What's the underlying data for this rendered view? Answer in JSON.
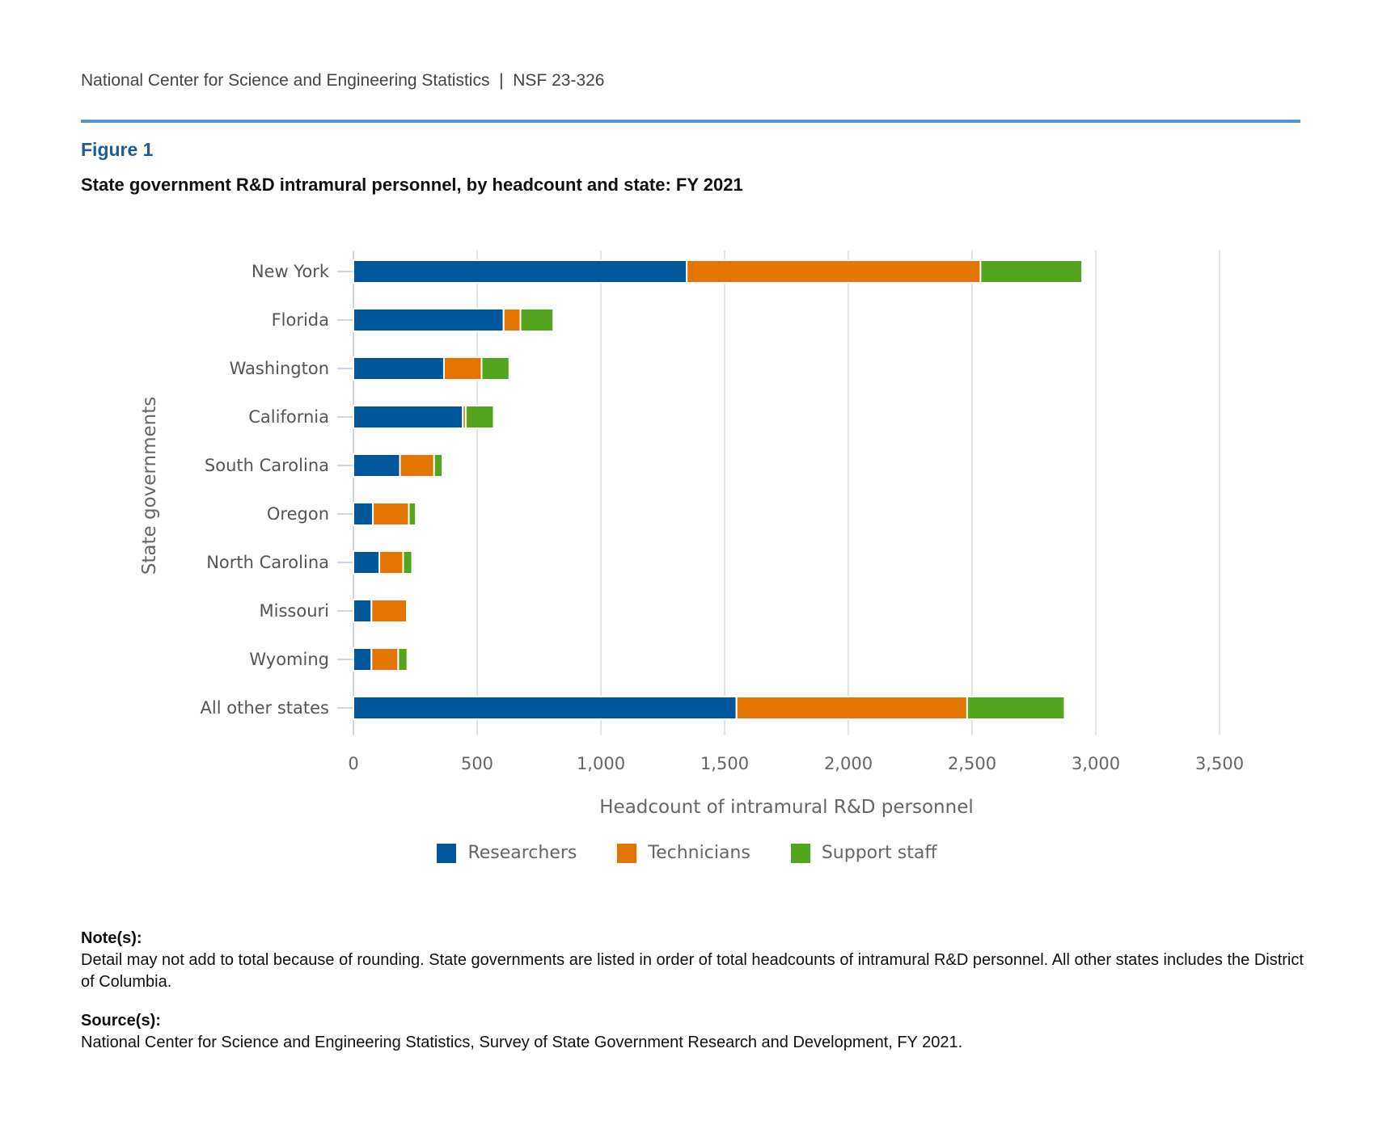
{
  "header": {
    "org": "National Center for Science and Engineering Statistics",
    "separator": "|",
    "report_id": "NSF 23-326"
  },
  "figure": {
    "label": "Figure 1",
    "title": "State government R&D intramural personnel, by headcount and state: FY 2021"
  },
  "colors": {
    "Researchers": "#00589a",
    "Technicians": "#e37400",
    "Support staff": "#52a51c"
  },
  "chart_data": {
    "type": "bar",
    "orientation": "horizontal",
    "stacked": true,
    "title": "State government R&D intramural personnel, by headcount and state: FY 2021",
    "xlabel": "Headcount of intramural R&D personnel",
    "ylabel": "State governments",
    "xlim": [
      0,
      3500
    ],
    "xticks": [
      0,
      500,
      1000,
      1500,
      2000,
      2500,
      3000,
      3500
    ],
    "xtick_labels": [
      "0",
      "500",
      "1,000",
      "1,500",
      "2,000",
      "2,500",
      "3,000",
      "3,500"
    ],
    "grid": true,
    "legend_position": "bottom-center",
    "categories": [
      "New York",
      "Florida",
      "Washington",
      "California",
      "South Carolina",
      "Oregon",
      "North Carolina",
      "Missouri",
      "Wyoming",
      "All other states"
    ],
    "series": [
      {
        "name": "Researchers",
        "values": [
          1347,
          607,
          366,
          442,
          188,
          79,
          105,
          73,
          73,
          1548
        ]
      },
      {
        "name": "Technicians",
        "values": [
          1187,
          68,
          152,
          12,
          138,
          145,
          96,
          143,
          108,
          932
        ]
      },
      {
        "name": "Support staff",
        "values": [
          411,
          133,
          112,
          113,
          34,
          28,
          36,
          0,
          37,
          394
        ]
      }
    ]
  },
  "notes": {
    "heading": "Note(s):",
    "text": "Detail may not add to total because of rounding. State governments are listed in order of total headcounts of intramural R&D personnel. All other states includes the District of Columbia."
  },
  "source": {
    "heading": "Source(s):",
    "text": "National Center for Science and Engineering Statistics, Survey of State Government Research and Development, FY 2021."
  }
}
